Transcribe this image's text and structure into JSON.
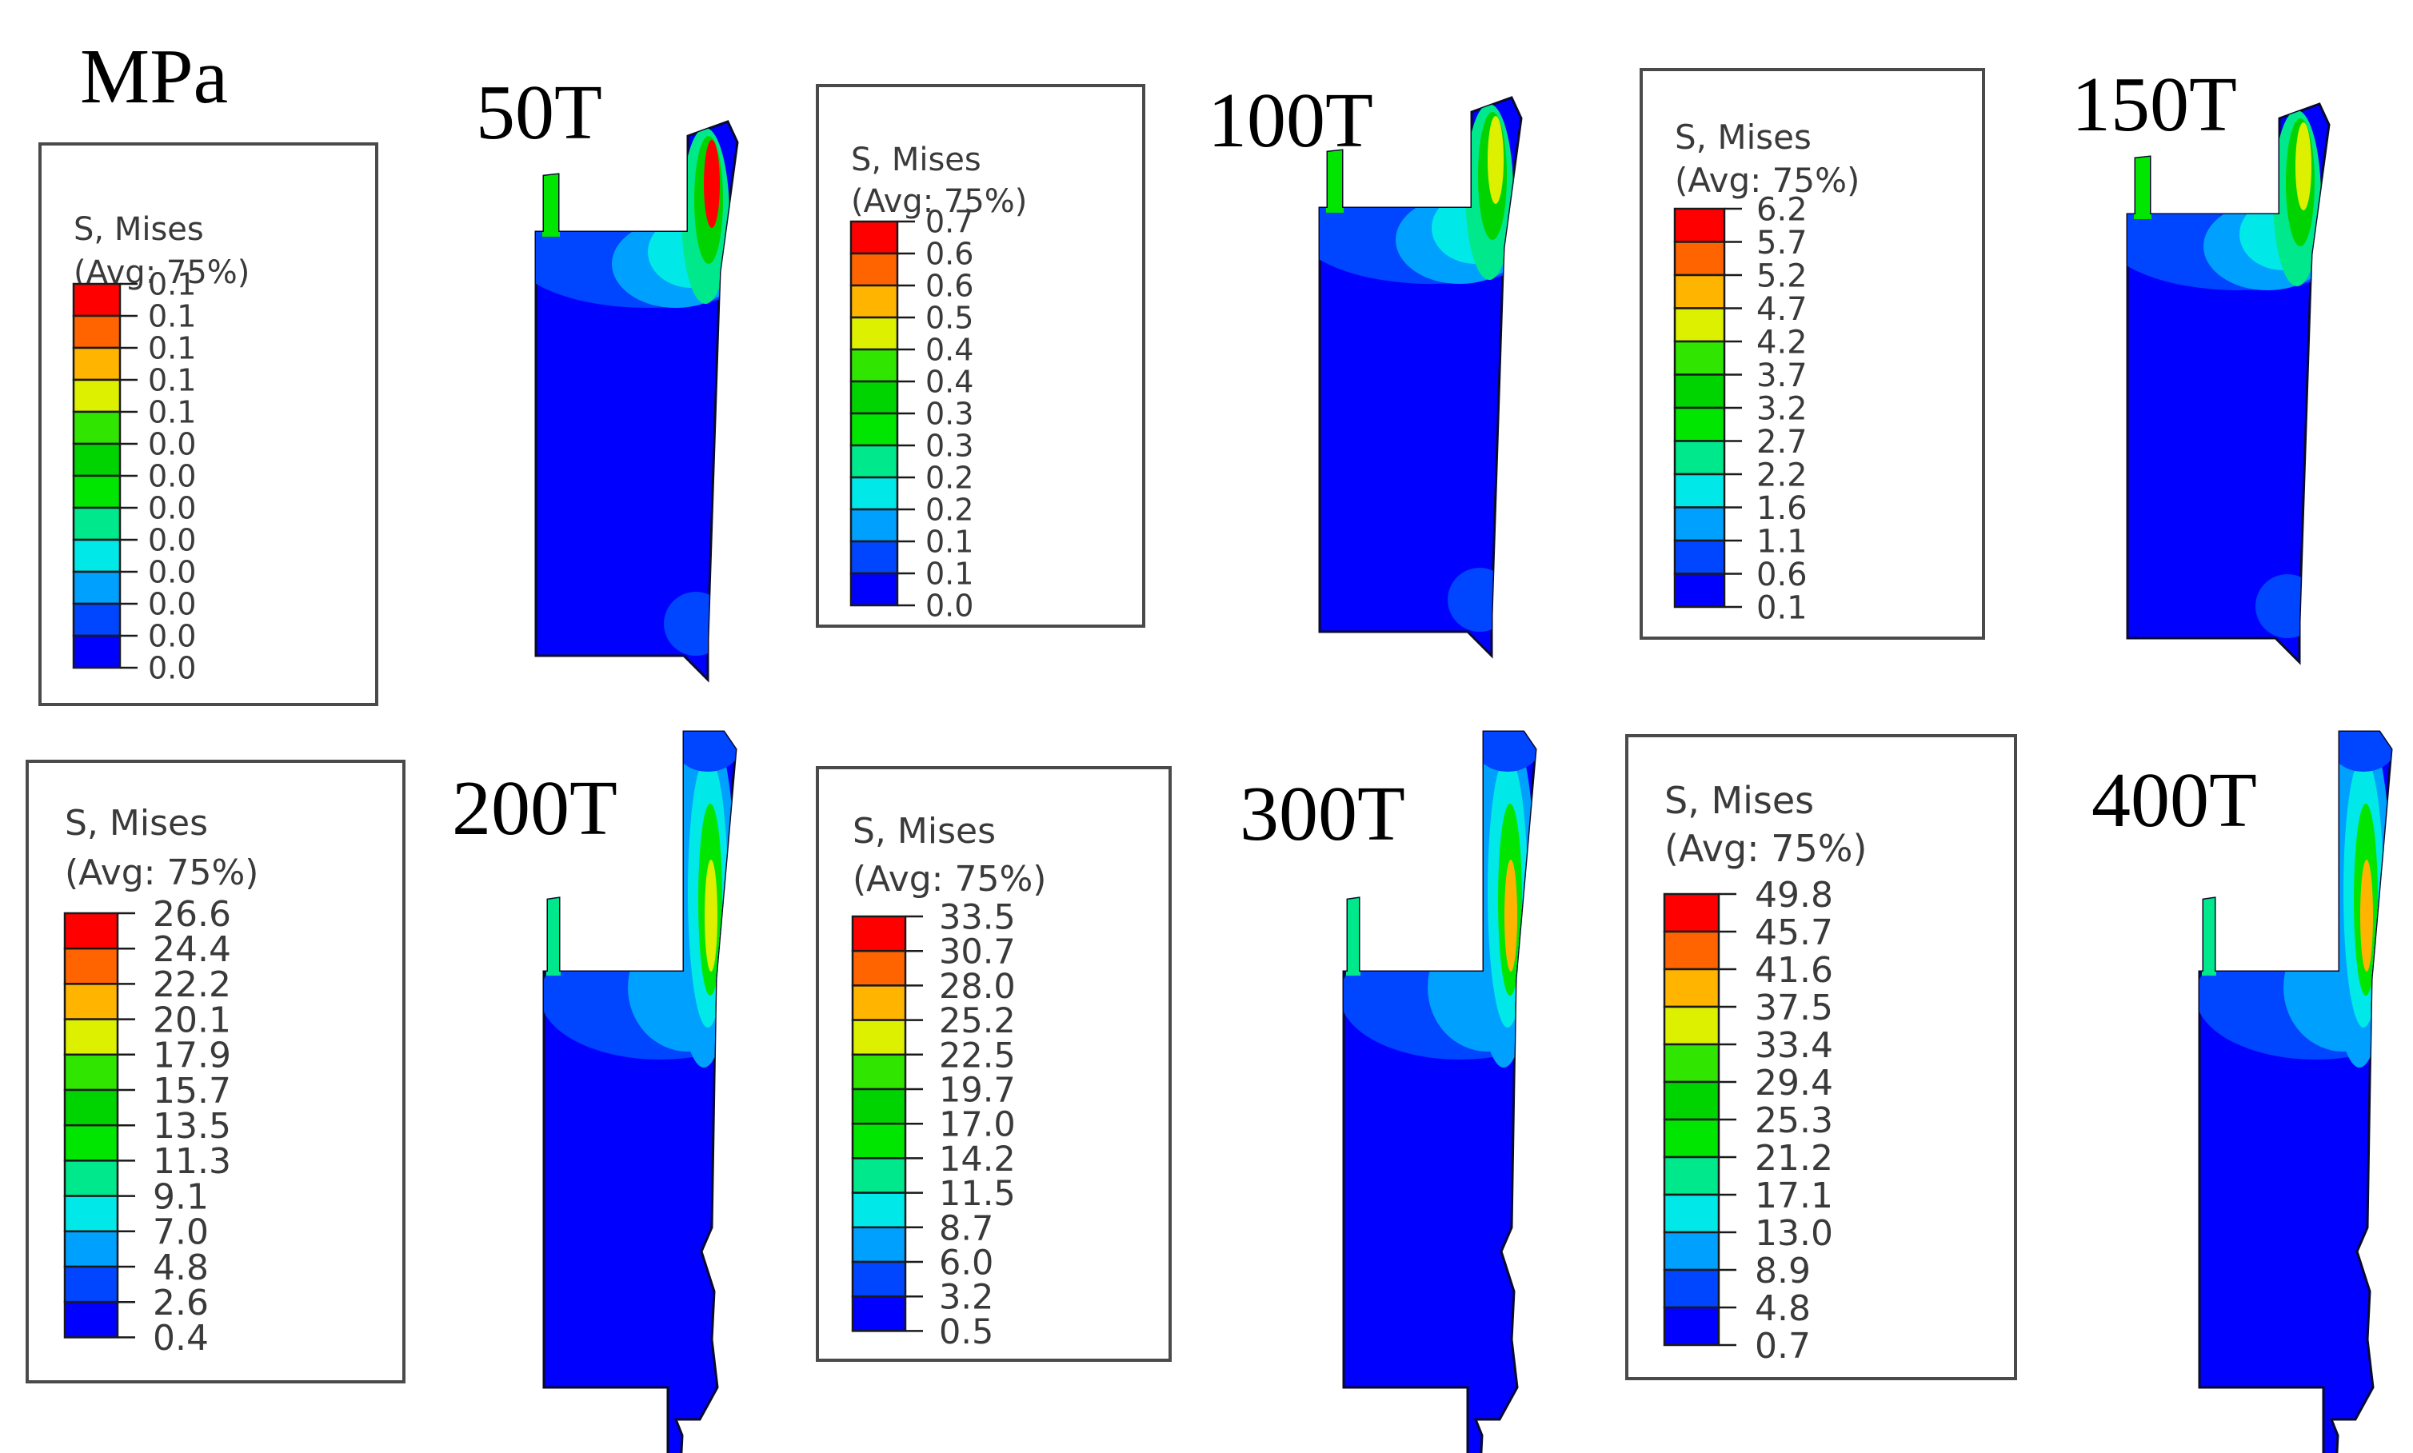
{
  "unit_label": "MPa",
  "colorbar": [
    "#0000ff",
    "#0045ff",
    "#00a0ff",
    "#00e8e8",
    "#00e88c",
    "#00e600",
    "#00d400",
    "#30e600",
    "#dcf000",
    "#ffb400",
    "#ff6400",
    "#ff0000"
  ],
  "panels": [
    {
      "load": "50T",
      "legend_title": "S, Mises",
      "legend_avg": "(Avg: 75%)",
      "values": [
        "0.1",
        "0.1",
        "0.1",
        "0.1",
        "0.1",
        "0.0",
        "0.0",
        "0.0",
        "0.0",
        "0.0",
        "0.0",
        "0.0",
        "0.0"
      ]
    },
    {
      "load": "100T",
      "legend_title": "S, Mises",
      "legend_avg": "(Avg: 75%)",
      "values": [
        "0.7",
        "0.6",
        "0.6",
        "0.5",
        "0.4",
        "0.4",
        "0.3",
        "0.3",
        "0.2",
        "0.2",
        "0.1",
        "0.1",
        "0.0"
      ]
    },
    {
      "load": "150T",
      "legend_title": "S, Mises",
      "legend_avg": "(Avg: 75%)",
      "values": [
        "6.2",
        "5.7",
        "5.2",
        "4.7",
        "4.2",
        "3.7",
        "3.2",
        "2.7",
        "2.2",
        "1.6",
        "1.1",
        "0.6",
        "0.1"
      ]
    },
    {
      "load": "200T",
      "legend_title": "S, Mises",
      "legend_avg": "(Avg: 75%)",
      "values": [
        "26.6",
        "24.4",
        "22.2",
        "20.1",
        "17.9",
        "15.7",
        "13.5",
        "11.3",
        "9.1",
        "7.0",
        "4.8",
        "2.6",
        "0.4"
      ]
    },
    {
      "load": "300T",
      "legend_title": "S, Mises",
      "legend_avg": "(Avg: 75%)",
      "values": [
        "33.5",
        "30.7",
        "28.0",
        "25.2",
        "22.5",
        "19.7",
        "17.0",
        "14.2",
        "11.5",
        "8.7",
        "6.0",
        "3.2",
        "0.5"
      ]
    },
    {
      "load": "400T",
      "legend_title": "S, Mises",
      "legend_avg": "(Avg: 75%)",
      "values": [
        "49.8",
        "45.7",
        "41.6",
        "37.5",
        "33.4",
        "29.4",
        "25.3",
        "21.2",
        "17.1",
        "13.0",
        "8.9",
        "4.8",
        "0.7"
      ]
    }
  ]
}
